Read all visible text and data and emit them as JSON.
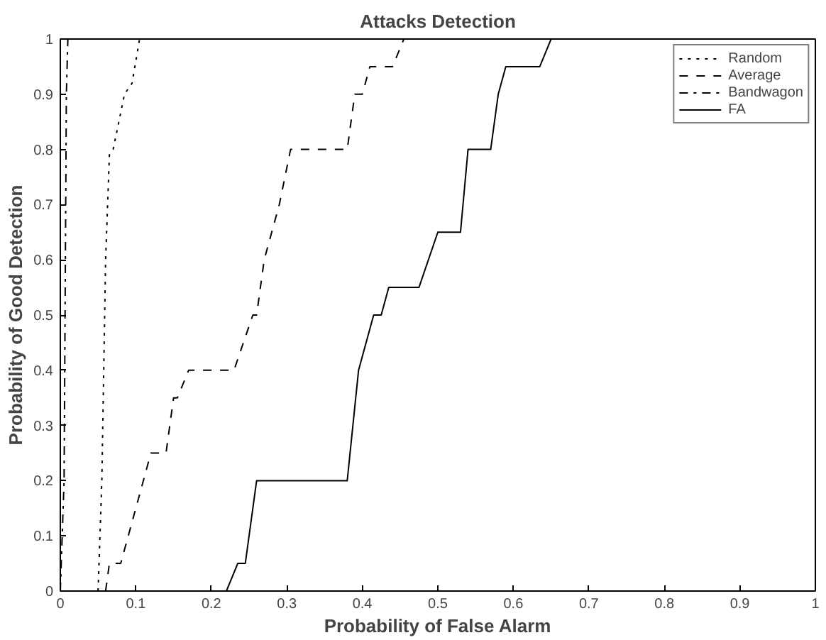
{
  "chart_data": {
    "type": "line",
    "title": "Attacks Detection",
    "xlabel": "Probability of False Alarm",
    "ylabel": "Probability of Good Detection",
    "xlim": [
      0,
      1
    ],
    "ylim": [
      0,
      1
    ],
    "xticks": [
      0,
      0.1,
      0.2,
      0.3,
      0.4,
      0.5,
      0.6,
      0.7,
      0.8,
      0.9,
      1
    ],
    "yticks": [
      0,
      0.1,
      0.2,
      0.3,
      0.4,
      0.5,
      0.6,
      0.7,
      0.8,
      0.9,
      1
    ],
    "grid": false,
    "legend": "top right",
    "series": [
      {
        "name": "Random",
        "color": "#000000",
        "line_style": "dotted",
        "x": [
          0.05,
          0.055,
          0.06,
          0.065,
          0.07,
          0.085,
          0.095,
          0.105,
          1
        ],
        "values": [
          0,
          0.2,
          0.6,
          0.79,
          0.8,
          0.9,
          0.92,
          1,
          1
        ]
      },
      {
        "name": "Average",
        "color": "#000000",
        "line_style": "dashed",
        "x": [
          0.06,
          0.065,
          0.08,
          0.12,
          0.14,
          0.15,
          0.155,
          0.17,
          0.23,
          0.255,
          0.26,
          0.27,
          0.28,
          0.29,
          0.305,
          0.38,
          0.39,
          0.4,
          0.41,
          0.44,
          0.455,
          1
        ],
        "values": [
          0,
          0.05,
          0.05,
          0.25,
          0.25,
          0.35,
          0.35,
          0.4,
          0.4,
          0.5,
          0.5,
          0.6,
          0.65,
          0.7,
          0.8,
          0.8,
          0.9,
          0.9,
          0.95,
          0.95,
          1,
          1
        ]
      },
      {
        "name": "Bandwagon",
        "color": "#000000",
        "line_style": "dashdot",
        "x": [
          0,
          0.005,
          0.008,
          0.01,
          1
        ],
        "values": [
          0,
          0.2,
          0.9,
          1,
          1
        ]
      },
      {
        "name": "FA",
        "color": "#000000",
        "line_style": "solid",
        "x": [
          0.22,
          0.235,
          0.245,
          0.25,
          0.26,
          0.38,
          0.395,
          0.415,
          0.425,
          0.435,
          0.475,
          0.5,
          0.53,
          0.54,
          0.57,
          0.58,
          0.59,
          0.635,
          0.65,
          1
        ],
        "values": [
          0,
          0.05,
          0.05,
          0.1,
          0.2,
          0.2,
          0.4,
          0.5,
          0.5,
          0.55,
          0.55,
          0.65,
          0.65,
          0.8,
          0.8,
          0.9,
          0.95,
          0.95,
          1,
          1
        ]
      }
    ]
  }
}
